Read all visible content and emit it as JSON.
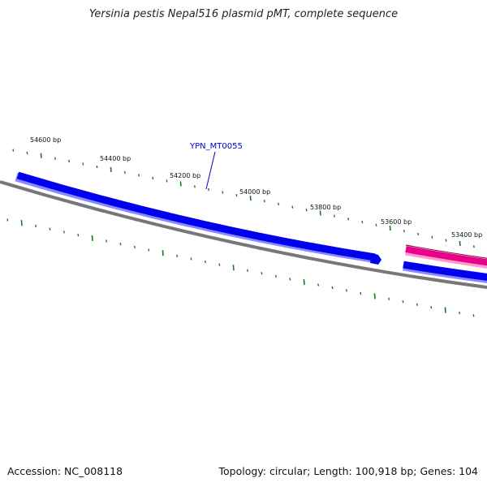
{
  "title": "Yersinia pestis Nepal516 plasmid pMT, complete sequence",
  "footer": {
    "accession": "Accession: NC_008118",
    "summary": "Topology: circular; Length: 100,918 bp; Genes: 104"
  },
  "gene_label": "YPN_MT0055",
  "colors": {
    "forward_gene": "#0000ee",
    "reverse_gene": "#e8008a",
    "backbone": "#777777",
    "ticks": "#1a7a1a"
  },
  "scale_labels": [
    "54600 bp",
    "54400 bp",
    "54200 bp",
    "54000 bp",
    "53800 bp",
    "53600 bp",
    "53400 bp"
  ]
}
